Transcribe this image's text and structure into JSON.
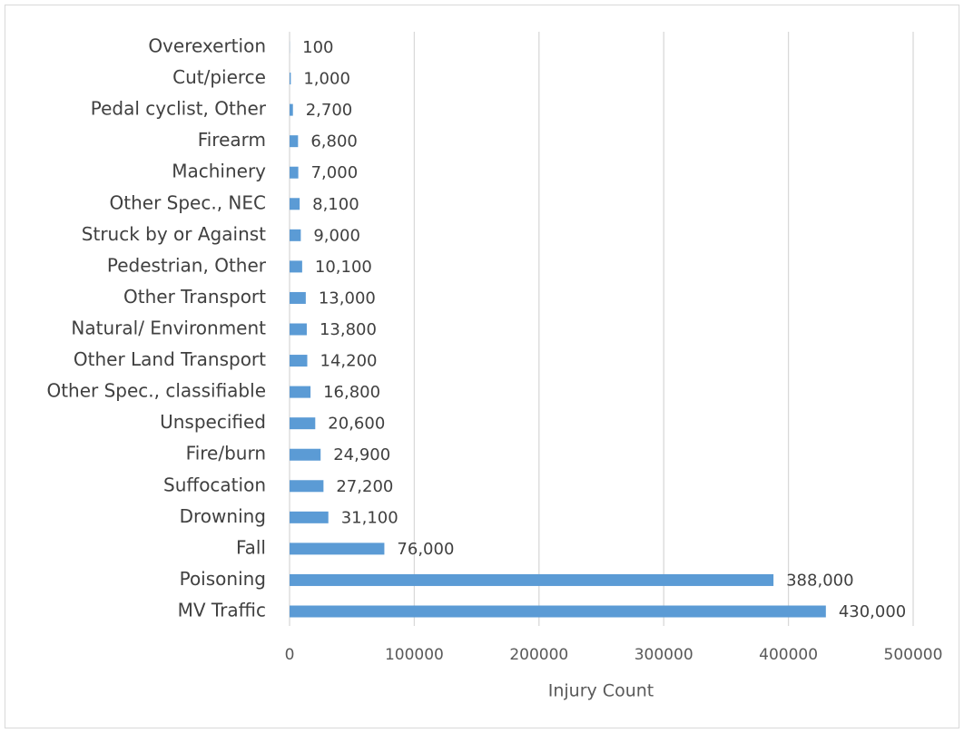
{
  "chart_data": {
    "type": "bar",
    "orientation": "horizontal",
    "x_label": "Injury Count",
    "categories": [
      "Overexertion",
      "Cut/pierce",
      "Pedal cyclist, Other",
      "Firearm",
      "Machinery",
      "Other Spec., NEC",
      "Struck by or Against",
      "Pedestrian, Other",
      "Other Transport",
      "Natural/ Environment",
      "Other Land Transport",
      "Other Spec., classifiable",
      "Unspecified",
      "Fire/burn",
      "Suffocation",
      "Drowning",
      "Fall",
      "Poisoning",
      "MV Traffic"
    ],
    "values": [
      100,
      1000,
      2700,
      6800,
      7000,
      8100,
      9000,
      10100,
      13000,
      13800,
      14200,
      16800,
      20600,
      24900,
      27200,
      31100,
      76000,
      388000,
      430000
    ],
    "value_labels": [
      "100",
      "1,000",
      "2,700",
      "6,800",
      "7,000",
      "8,100",
      "9,000",
      "10,100",
      "13,000",
      "13,800",
      "14,200",
      "16,800",
      "20,600",
      "24,900",
      "27,200",
      "31,100",
      "76,000",
      "388,000",
      "430,000"
    ],
    "color": "#5b9bd5",
    "xlim": [
      0,
      500000
    ],
    "xticks": [
      0,
      100000,
      200000,
      300000,
      400000,
      500000
    ],
    "grid": true
  }
}
